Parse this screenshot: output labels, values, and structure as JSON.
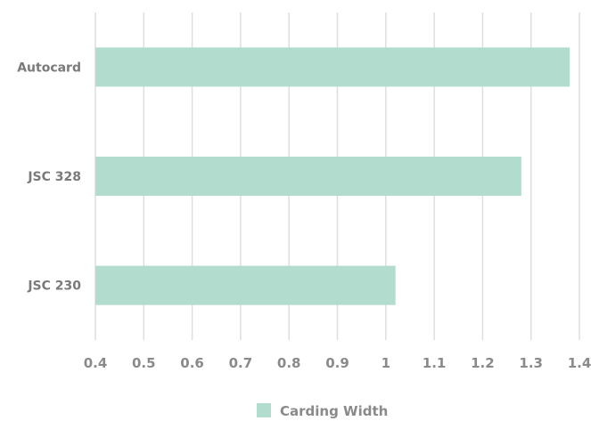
{
  "chart_data": {
    "type": "bar",
    "orientation": "horizontal",
    "categories": [
      "Autocard",
      "JSC 328",
      "JSC 230"
    ],
    "series": [
      {
        "name": "Carding Width",
        "values": [
          1.38,
          1.28,
          1.02
        ]
      }
    ],
    "x_ticks": [
      "0.4",
      "0.5",
      "0.6",
      "0.7",
      "0.8",
      "0.9",
      "1",
      "1.1",
      "1.2",
      "1.3",
      "1.4"
    ],
    "xlim": [
      0.4,
      1.4
    ],
    "grid": "vertical",
    "legend_position": "bottom-center",
    "bar_color": "#b2dccd"
  }
}
